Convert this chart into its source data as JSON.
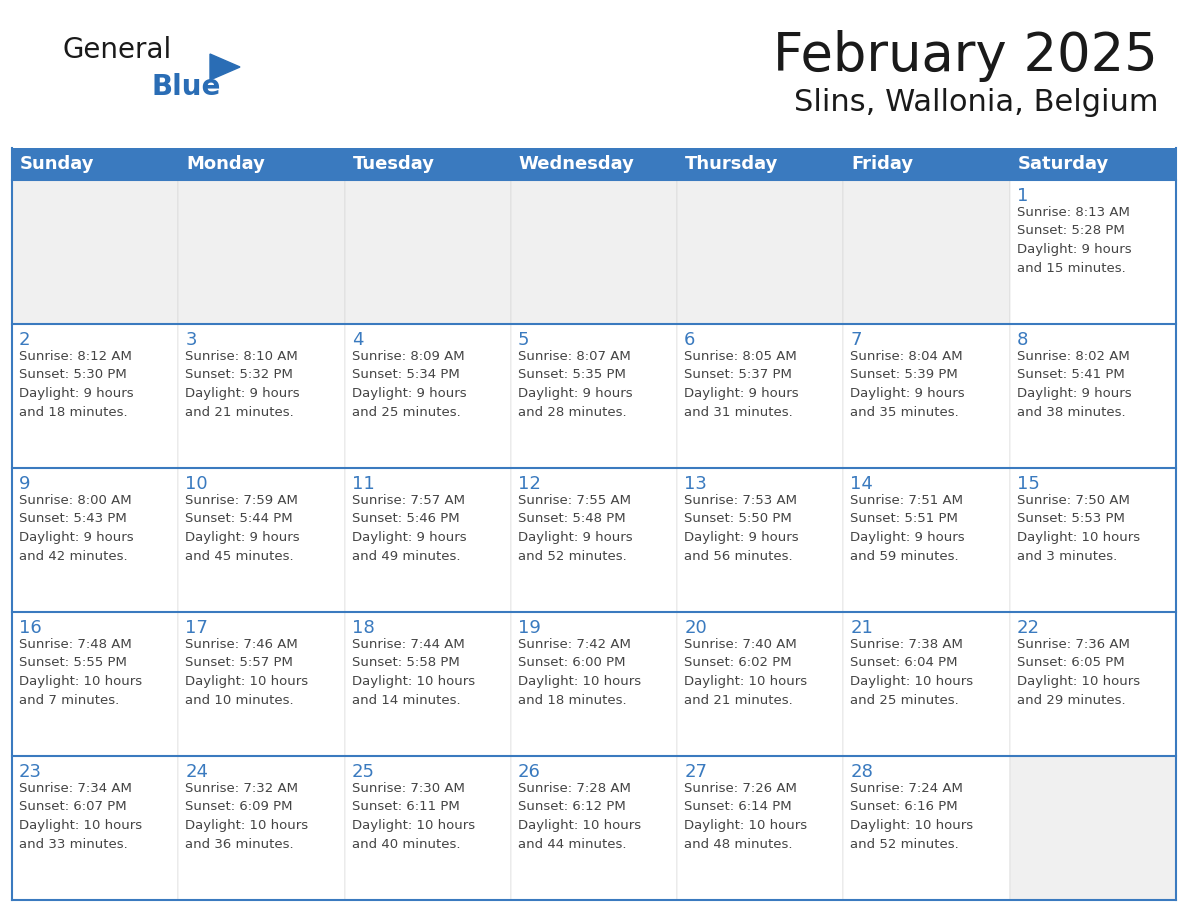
{
  "title": "February 2025",
  "subtitle": "Slins, Wallonia, Belgium",
  "header_color": "#3a7abf",
  "header_text_color": "#ffffff",
  "empty_cell_color": "#f0f0f0",
  "cell_bg_color": "#ffffff",
  "day_number_color": "#3a7abf",
  "info_text_color": "#444444",
  "separator_color": "#3a7abf",
  "days_of_week": [
    "Sunday",
    "Monday",
    "Tuesday",
    "Wednesday",
    "Thursday",
    "Friday",
    "Saturday"
  ],
  "weeks": [
    [
      {
        "day": null,
        "info": null
      },
      {
        "day": null,
        "info": null
      },
      {
        "day": null,
        "info": null
      },
      {
        "day": null,
        "info": null
      },
      {
        "day": null,
        "info": null
      },
      {
        "day": null,
        "info": null
      },
      {
        "day": 1,
        "info": "Sunrise: 8:13 AM\nSunset: 5:28 PM\nDaylight: 9 hours\nand 15 minutes."
      }
    ],
    [
      {
        "day": 2,
        "info": "Sunrise: 8:12 AM\nSunset: 5:30 PM\nDaylight: 9 hours\nand 18 minutes."
      },
      {
        "day": 3,
        "info": "Sunrise: 8:10 AM\nSunset: 5:32 PM\nDaylight: 9 hours\nand 21 minutes."
      },
      {
        "day": 4,
        "info": "Sunrise: 8:09 AM\nSunset: 5:34 PM\nDaylight: 9 hours\nand 25 minutes."
      },
      {
        "day": 5,
        "info": "Sunrise: 8:07 AM\nSunset: 5:35 PM\nDaylight: 9 hours\nand 28 minutes."
      },
      {
        "day": 6,
        "info": "Sunrise: 8:05 AM\nSunset: 5:37 PM\nDaylight: 9 hours\nand 31 minutes."
      },
      {
        "day": 7,
        "info": "Sunrise: 8:04 AM\nSunset: 5:39 PM\nDaylight: 9 hours\nand 35 minutes."
      },
      {
        "day": 8,
        "info": "Sunrise: 8:02 AM\nSunset: 5:41 PM\nDaylight: 9 hours\nand 38 minutes."
      }
    ],
    [
      {
        "day": 9,
        "info": "Sunrise: 8:00 AM\nSunset: 5:43 PM\nDaylight: 9 hours\nand 42 minutes."
      },
      {
        "day": 10,
        "info": "Sunrise: 7:59 AM\nSunset: 5:44 PM\nDaylight: 9 hours\nand 45 minutes."
      },
      {
        "day": 11,
        "info": "Sunrise: 7:57 AM\nSunset: 5:46 PM\nDaylight: 9 hours\nand 49 minutes."
      },
      {
        "day": 12,
        "info": "Sunrise: 7:55 AM\nSunset: 5:48 PM\nDaylight: 9 hours\nand 52 minutes."
      },
      {
        "day": 13,
        "info": "Sunrise: 7:53 AM\nSunset: 5:50 PM\nDaylight: 9 hours\nand 56 minutes."
      },
      {
        "day": 14,
        "info": "Sunrise: 7:51 AM\nSunset: 5:51 PM\nDaylight: 9 hours\nand 59 minutes."
      },
      {
        "day": 15,
        "info": "Sunrise: 7:50 AM\nSunset: 5:53 PM\nDaylight: 10 hours\nand 3 minutes."
      }
    ],
    [
      {
        "day": 16,
        "info": "Sunrise: 7:48 AM\nSunset: 5:55 PM\nDaylight: 10 hours\nand 7 minutes."
      },
      {
        "day": 17,
        "info": "Sunrise: 7:46 AM\nSunset: 5:57 PM\nDaylight: 10 hours\nand 10 minutes."
      },
      {
        "day": 18,
        "info": "Sunrise: 7:44 AM\nSunset: 5:58 PM\nDaylight: 10 hours\nand 14 minutes."
      },
      {
        "day": 19,
        "info": "Sunrise: 7:42 AM\nSunset: 6:00 PM\nDaylight: 10 hours\nand 18 minutes."
      },
      {
        "day": 20,
        "info": "Sunrise: 7:40 AM\nSunset: 6:02 PM\nDaylight: 10 hours\nand 21 minutes."
      },
      {
        "day": 21,
        "info": "Sunrise: 7:38 AM\nSunset: 6:04 PM\nDaylight: 10 hours\nand 25 minutes."
      },
      {
        "day": 22,
        "info": "Sunrise: 7:36 AM\nSunset: 6:05 PM\nDaylight: 10 hours\nand 29 minutes."
      }
    ],
    [
      {
        "day": 23,
        "info": "Sunrise: 7:34 AM\nSunset: 6:07 PM\nDaylight: 10 hours\nand 33 minutes."
      },
      {
        "day": 24,
        "info": "Sunrise: 7:32 AM\nSunset: 6:09 PM\nDaylight: 10 hours\nand 36 minutes."
      },
      {
        "day": 25,
        "info": "Sunrise: 7:30 AM\nSunset: 6:11 PM\nDaylight: 10 hours\nand 40 minutes."
      },
      {
        "day": 26,
        "info": "Sunrise: 7:28 AM\nSunset: 6:12 PM\nDaylight: 10 hours\nand 44 minutes."
      },
      {
        "day": 27,
        "info": "Sunrise: 7:26 AM\nSunset: 6:14 PM\nDaylight: 10 hours\nand 48 minutes."
      },
      {
        "day": 28,
        "info": "Sunrise: 7:24 AM\nSunset: 6:16 PM\nDaylight: 10 hours\nand 52 minutes."
      },
      {
        "day": null,
        "info": null
      }
    ]
  ],
  "logo_general_color": "#1a1a1a",
  "logo_blue_color": "#2a6db5",
  "title_fontsize": 38,
  "subtitle_fontsize": 22,
  "header_fontsize": 13,
  "day_number_fontsize": 13,
  "info_fontsize": 9.5,
  "fig_width": 11.88,
  "fig_height": 9.18,
  "fig_dpi": 100
}
